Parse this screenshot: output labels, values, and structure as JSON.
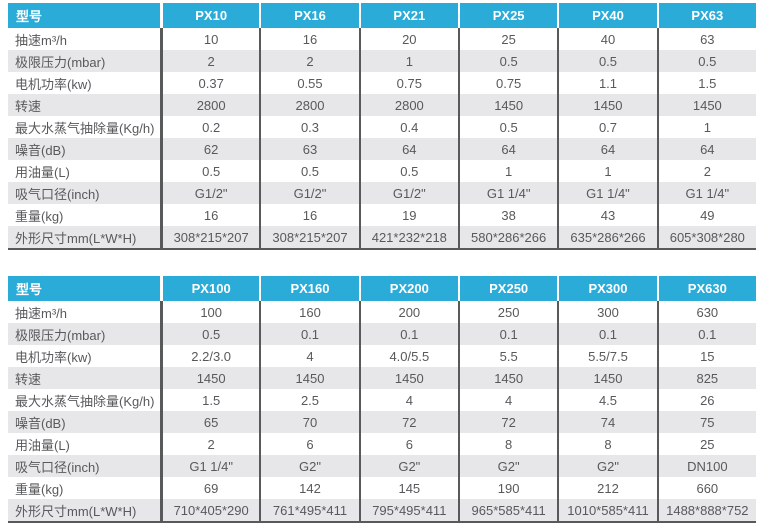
{
  "colors": {
    "header_bg": "#2AABD8",
    "header_text": "#FFFFFF",
    "stripe_row_bg": "#E7E7E9",
    "grid_and_text": "#58595B"
  },
  "chart_data": [
    {
      "type": "table",
      "title": "",
      "legend_position": "none",
      "columns": [
        "型号",
        "PX10",
        "PX16",
        "PX21",
        "PX25",
        "PX40",
        "PX63"
      ],
      "rows": [
        [
          "抽速m³/h",
          "10",
          "16",
          "20",
          "25",
          "40",
          "63"
        ],
        [
          "极限压力(mbar)",
          "2",
          "2",
          "1",
          "0.5",
          "0.5",
          "0.5"
        ],
        [
          "电机功率(kw)",
          "0.37",
          "0.55",
          "0.75",
          "0.75",
          "1.1",
          "1.5"
        ],
        [
          "转速",
          "2800",
          "2800",
          "2800",
          "1450",
          "1450",
          "1450"
        ],
        [
          "最大水蒸气抽除量(Kg/h)",
          "0.2",
          "0.3",
          "0.4",
          "0.5",
          "0.7",
          "1"
        ],
        [
          "噪音(dB)",
          "62",
          "63",
          "64",
          "64",
          "64",
          "64"
        ],
        [
          "用油量(L)",
          "0.5",
          "0.5",
          "0.5",
          "1",
          "1",
          "2"
        ],
        [
          "吸气口径(inch)",
          "G1/2\"",
          "G1/2\"",
          "G1/2\"",
          "G1 1/4\"",
          "G1 1/4\"",
          "G1 1/4\""
        ],
        [
          "重量(kg)",
          "16",
          "16",
          "19",
          "38",
          "43",
          "49"
        ],
        [
          "外形尺寸mm(L*W*H)",
          "308*215*207",
          "308*215*207",
          "421*232*218",
          "580*286*266",
          "635*286*266",
          "605*308*280"
        ]
      ]
    },
    {
      "type": "table",
      "title": "",
      "legend_position": "none",
      "columns": [
        "型号",
        "PX100",
        "PX160",
        "PX200",
        "PX250",
        "PX300",
        "PX630"
      ],
      "rows": [
        [
          "抽速m³/h",
          "100",
          "160",
          "200",
          "250",
          "300",
          "630"
        ],
        [
          "极限压力(mbar)",
          "0.5",
          "0.1",
          "0.1",
          "0.1",
          "0.1",
          "0.1"
        ],
        [
          "电机功率(kw)",
          "2.2/3.0",
          "4",
          "4.0/5.5",
          "5.5",
          "5.5/7.5",
          "15"
        ],
        [
          "转速",
          "1450",
          "1450",
          "1450",
          "1450",
          "1450",
          "825"
        ],
        [
          "最大水蒸气抽除量(Kg/h)",
          "1.5",
          "2.5",
          "4",
          "4",
          "4.5",
          "26"
        ],
        [
          "噪音(dB)",
          "65",
          "70",
          "72",
          "72",
          "74",
          "75"
        ],
        [
          "用油量(L)",
          "2",
          "6",
          "6",
          "8",
          "8",
          "25"
        ],
        [
          "吸气口径(inch)",
          "G1 1/4\"",
          "G2\"",
          "G2\"",
          "G2\"",
          "G2\"",
          "DN100"
        ],
        [
          "重量(kg)",
          "69",
          "142",
          "145",
          "190",
          "212",
          "660"
        ],
        [
          "外形尺寸mm(L*W*H)",
          "710*405*290",
          "761*495*411",
          "795*495*411",
          "965*585*411",
          "1010*585*411",
          "1488*888*752"
        ]
      ]
    }
  ]
}
